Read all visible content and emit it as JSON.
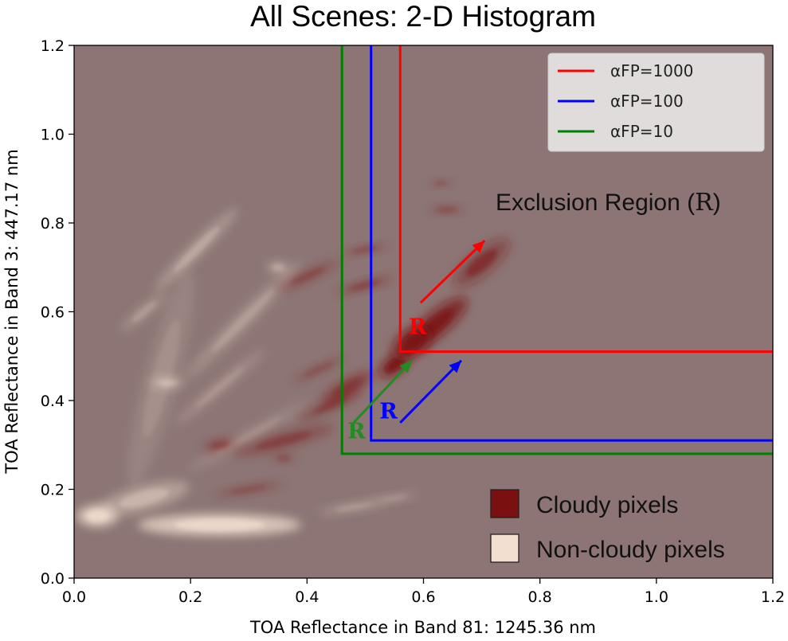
{
  "chart_data": {
    "type": "heatmap",
    "title": "All Scenes: 2-D Histogram",
    "xlabel": "TOA Reflectance in Band 81: 1245.36 nm",
    "ylabel": "TOA Reflectance in Band 3: 447.17 nm",
    "xlim": [
      0.0,
      1.2
    ],
    "ylim": [
      0.0,
      1.2
    ],
    "x_ticks": [
      "0.0",
      "0.2",
      "0.4",
      "0.6",
      "0.8",
      "1.0",
      "1.2"
    ],
    "y_ticks": [
      "0.0",
      "0.2",
      "0.4",
      "0.6",
      "0.8",
      "1.0",
      "1.2"
    ],
    "grid": false,
    "background_color": "#8c7574",
    "cloudy_color": "#7a1010",
    "noncloudy_color": "#f2dfd0",
    "threshold_series": [
      {
        "name": "αFP=1000",
        "color": "#ff0000",
        "x_threshold": 0.56,
        "y_threshold": 0.51
      },
      {
        "name": "αFP=100",
        "color": "#0000ff",
        "x_threshold": 0.51,
        "y_threshold": 0.31
      },
      {
        "name": "αFP=10",
        "color": "#008000",
        "x_threshold": 0.46,
        "y_threshold": 0.28
      }
    ],
    "legend_placement": "top-right",
    "cloudy_clusters": [
      {
        "x": 0.55,
        "y": 0.48,
        "sx": 0.03,
        "sy": 0.02,
        "angle": 35,
        "w": 1.0
      },
      {
        "x": 0.62,
        "y": 0.57,
        "sx": 0.07,
        "sy": 0.028,
        "angle": 40,
        "w": 0.95
      },
      {
        "x": 0.7,
        "y": 0.71,
        "sx": 0.06,
        "sy": 0.028,
        "angle": 40,
        "w": 0.55
      },
      {
        "x": 0.47,
        "y": 0.43,
        "sx": 0.05,
        "sy": 0.02,
        "angle": 30,
        "w": 0.5
      },
      {
        "x": 0.58,
        "y": 0.53,
        "sx": 0.04,
        "sy": 0.03,
        "angle": 35,
        "w": 0.9
      },
      {
        "x": 0.44,
        "y": 0.39,
        "sx": 0.06,
        "sy": 0.015,
        "angle": 25,
        "w": 0.35
      },
      {
        "x": 0.5,
        "y": 0.66,
        "sx": 0.05,
        "sy": 0.012,
        "angle": 15,
        "w": 0.35
      },
      {
        "x": 0.5,
        "y": 0.74,
        "sx": 0.04,
        "sy": 0.01,
        "angle": 10,
        "w": 0.3
      },
      {
        "x": 0.64,
        "y": 0.83,
        "sx": 0.03,
        "sy": 0.01,
        "angle": 0,
        "w": 0.3
      },
      {
        "x": 0.63,
        "y": 0.89,
        "sx": 0.02,
        "sy": 0.008,
        "angle": 0,
        "w": 0.25
      },
      {
        "x": 0.36,
        "y": 0.31,
        "sx": 0.09,
        "sy": 0.02,
        "angle": 15,
        "w": 0.35
      },
      {
        "x": 0.25,
        "y": 0.3,
        "sx": 0.03,
        "sy": 0.015,
        "angle": 10,
        "w": 0.35
      },
      {
        "x": 0.4,
        "y": 0.68,
        "sx": 0.06,
        "sy": 0.015,
        "angle": 25,
        "w": 0.3
      },
      {
        "x": 0.3,
        "y": 0.2,
        "sx": 0.06,
        "sy": 0.012,
        "angle": 10,
        "w": 0.25
      },
      {
        "x": 0.36,
        "y": 0.27,
        "sx": 0.02,
        "sy": 0.01,
        "angle": 0,
        "w": 0.3
      },
      {
        "x": 0.42,
        "y": 0.47,
        "sx": 0.05,
        "sy": 0.012,
        "angle": 25,
        "w": 0.25
      }
    ],
    "noncloudy_clusters": [
      {
        "x": 0.25,
        "y": 0.12,
        "sx": 0.14,
        "sy": 0.025,
        "angle": 0,
        "w": 1.0
      },
      {
        "x": 0.04,
        "y": 0.14,
        "sx": 0.035,
        "sy": 0.025,
        "angle": 0,
        "w": 1.0
      },
      {
        "x": 0.12,
        "y": 0.18,
        "sx": 0.08,
        "sy": 0.03,
        "angle": 15,
        "w": 0.5
      },
      {
        "x": 0.21,
        "y": 0.74,
        "sx": 0.1,
        "sy": 0.018,
        "angle": 45,
        "w": 0.4
      },
      {
        "x": 0.29,
        "y": 0.58,
        "sx": 0.14,
        "sy": 0.02,
        "angle": 45,
        "w": 0.3
      },
      {
        "x": 0.16,
        "y": 0.44,
        "sx": 0.03,
        "sy": 0.015,
        "angle": 0,
        "w": 0.45
      },
      {
        "x": 0.35,
        "y": 0.7,
        "sx": 0.02,
        "sy": 0.015,
        "angle": 0,
        "w": 0.4
      },
      {
        "x": 0.15,
        "y": 0.45,
        "sx": 0.03,
        "sy": 0.25,
        "angle": -15,
        "w": 0.18
      },
      {
        "x": 0.12,
        "y": 0.6,
        "sx": 0.05,
        "sy": 0.015,
        "angle": 40,
        "w": 0.3
      },
      {
        "x": 0.25,
        "y": 0.43,
        "sx": 0.1,
        "sy": 0.015,
        "angle": 40,
        "w": 0.25
      },
      {
        "x": 0.48,
        "y": 0.16,
        "sx": 0.06,
        "sy": 0.012,
        "angle": 10,
        "w": 0.3
      },
      {
        "x": 0.55,
        "y": 0.18,
        "sx": 0.04,
        "sy": 0.01,
        "angle": 10,
        "w": 0.25
      },
      {
        "x": 0.3,
        "y": 0.32,
        "sx": 0.12,
        "sy": 0.015,
        "angle": 30,
        "w": 0.2
      }
    ],
    "annotations": {
      "exclusion_label": "Exclusion Region (",
      "exclusion_symbol": "R",
      "exclusion_close": ")",
      "region_symbol": "R",
      "arrows": [
        {
          "color": "#ff0000",
          "from": [
            0.595,
            0.62
          ],
          "to": [
            0.705,
            0.76
          ]
        },
        {
          "color": "#0000ff",
          "from": [
            0.56,
            0.35
          ],
          "to": [
            0.665,
            0.49
          ]
        },
        {
          "color": "#228b22",
          "from": [
            0.48,
            0.35
          ],
          "to": [
            0.58,
            0.49
          ]
        }
      ],
      "r_marks": [
        {
          "color": "#ff0000",
          "x": 0.59,
          "y": 0.55
        },
        {
          "color": "#0000ff",
          "x": 0.54,
          "y": 0.36
        },
        {
          "color": "#228b22",
          "x": 0.485,
          "y": 0.315
        }
      ]
    },
    "pixel_legend": [
      {
        "label": "Cloudy pixels",
        "color": "#7a1010"
      },
      {
        "label": "Non-cloudy pixels",
        "color": "#f2dfd0"
      }
    ]
  }
}
